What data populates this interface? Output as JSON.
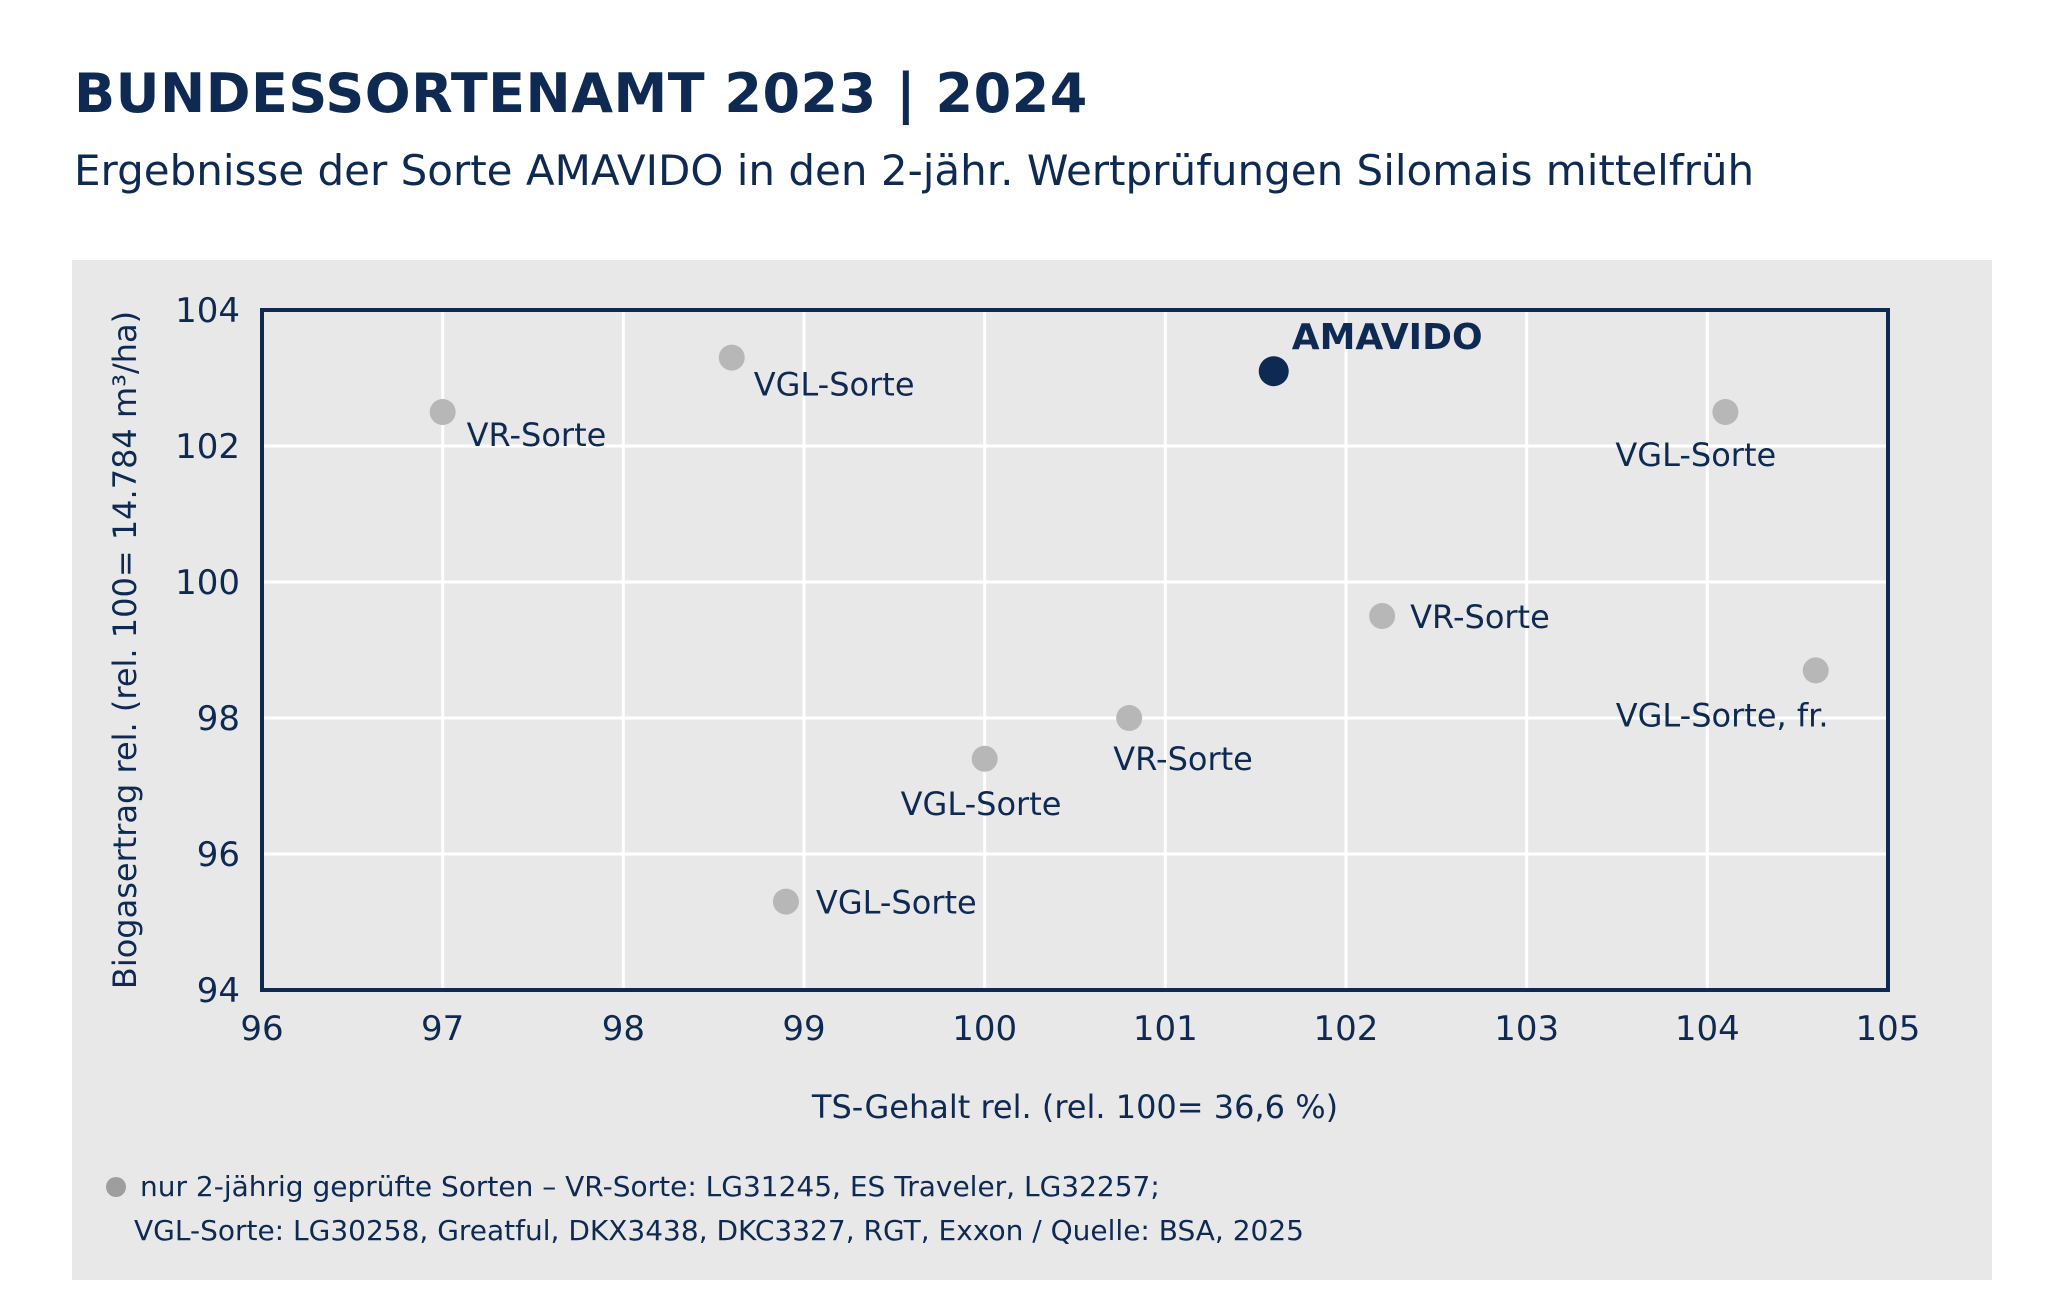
{
  "header": {
    "title": "BUNDESSORTENAMT 2023 | 2024",
    "subtitle": "Ergebnisse der Sorte AMAVIDO in den 2-jähr. Wertprüfungen Silomais mittelfrüh"
  },
  "colors": {
    "primary": "#0e2a52",
    "point": "#b7b7b7",
    "panel": "#e8e8e8",
    "grid": "#ffffff"
  },
  "chart_data": {
    "type": "scatter",
    "xlabel": "TS-Gehalt rel. (rel. 100= 36,6 %)",
    "ylabel": "Biogasertrag rel. (rel. 100= 14.784 m³/ha)",
    "xlim": [
      96,
      105
    ],
    "ylim": [
      94,
      104
    ],
    "xticks": [
      96,
      97,
      98,
      99,
      100,
      101,
      102,
      103,
      104,
      105
    ],
    "yticks": [
      94,
      96,
      98,
      100,
      102,
      104
    ],
    "grid": true,
    "points": [
      {
        "label": "AMAVIDO",
        "x": 101.6,
        "y": 103.1,
        "highlight": true
      },
      {
        "label": "VR-Sorte",
        "x": 97.0,
        "y": 102.5
      },
      {
        "label": "VGL-Sorte",
        "x": 98.6,
        "y": 103.3
      },
      {
        "label": "VGL-Sorte",
        "x": 104.1,
        "y": 102.5
      },
      {
        "label": "VR-Sorte",
        "x": 102.2,
        "y": 99.5
      },
      {
        "label": "VGL-Sorte, fr.",
        "x": 104.6,
        "y": 98.7
      },
      {
        "label": "VR-Sorte",
        "x": 100.8,
        "y": 98.0
      },
      {
        "label": "VGL-Sorte",
        "x": 100.0,
        "y": 97.4
      },
      {
        "label": "VGL-Sorte",
        "x": 98.9,
        "y": 95.3
      }
    ]
  },
  "footnote": {
    "line1": "nur 2-jährig geprüfte Sorten –  VR-Sorte: LG31245, ES Traveler, LG32257;",
    "line2": "VGL-Sorte: LG30258, Greatful, DKX3438, DKC3327, RGT, Exxon / Quelle: BSA, 2025"
  }
}
